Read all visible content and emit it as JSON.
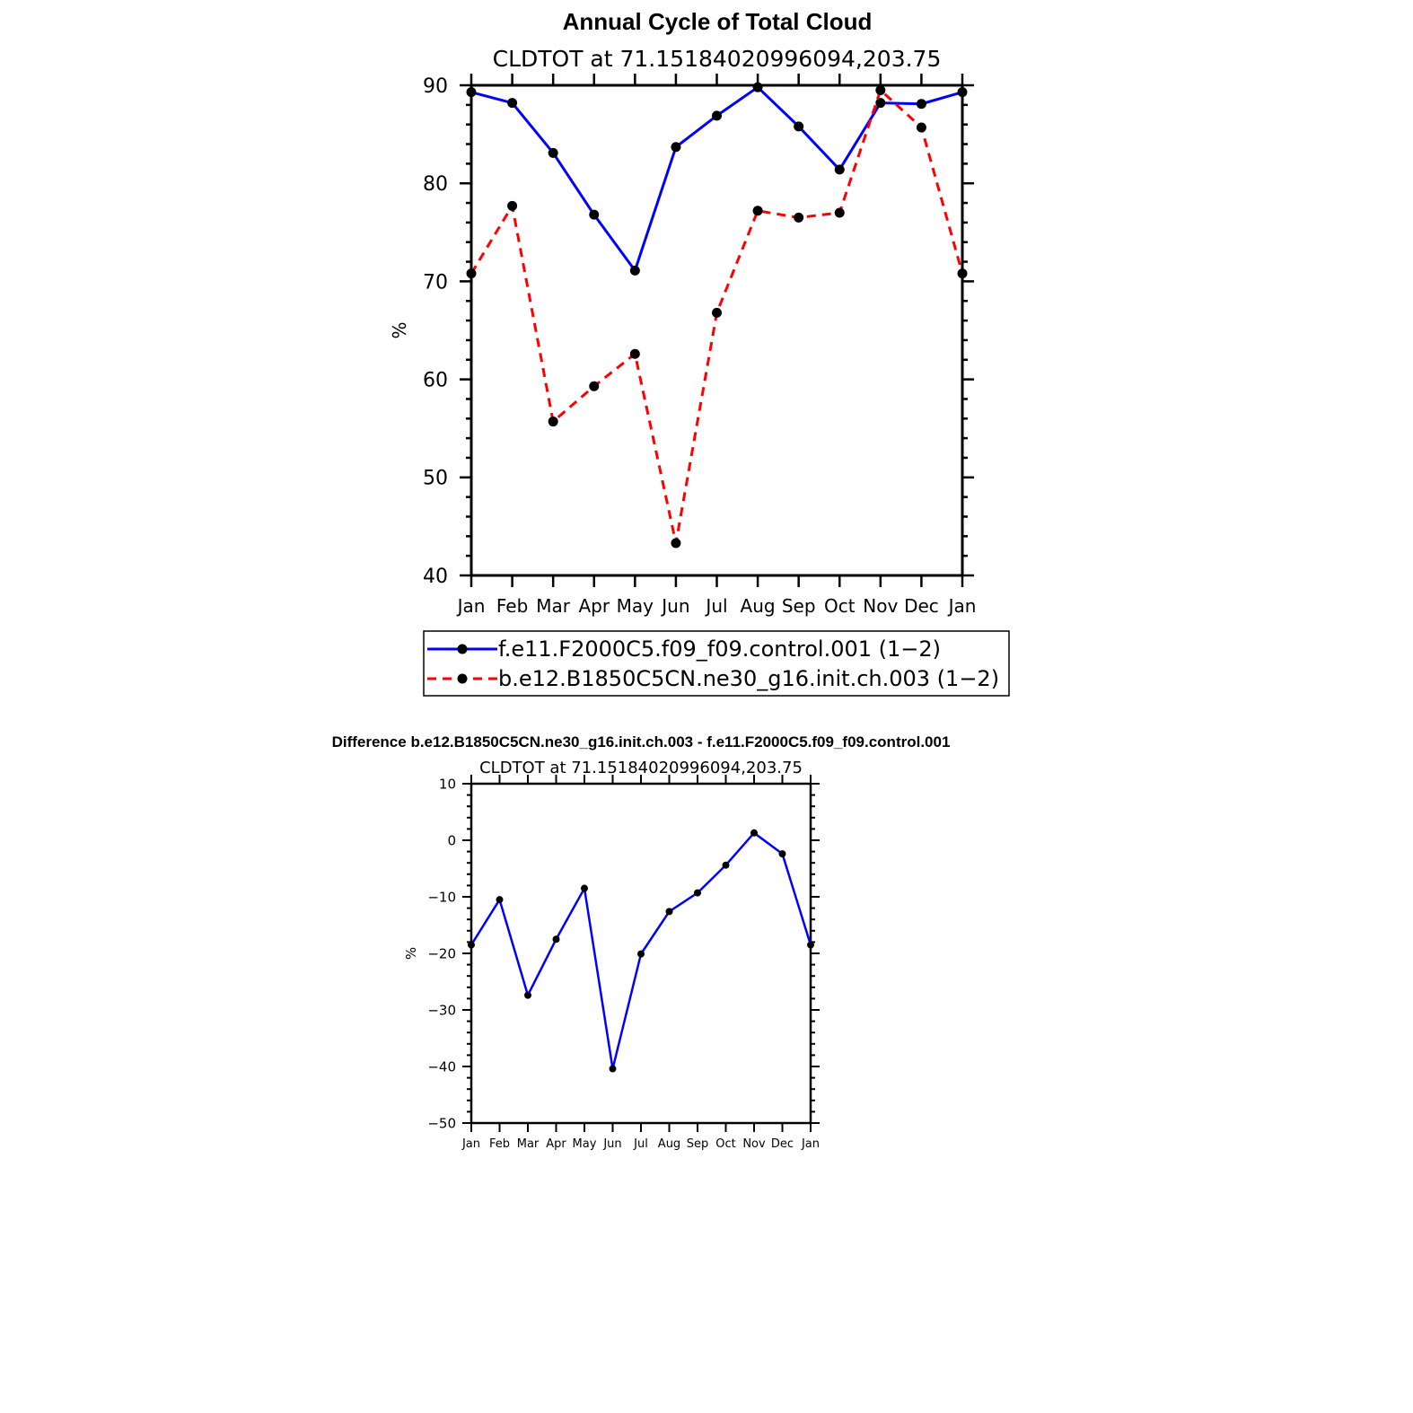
{
  "chart_data": [
    {
      "type": "line",
      "title": "Annual Cycle of Total Cloud",
      "subtitle": "CLDTOT at 71.15184020996094,203.75",
      "ylabel": "%",
      "xlabel": "",
      "categories": [
        "Jan",
        "Feb",
        "Mar",
        "Apr",
        "May",
        "Jun",
        "Jul",
        "Aug",
        "Sep",
        "Oct",
        "Nov",
        "Dec",
        "Jan"
      ],
      "ylim": [
        40,
        90
      ],
      "yticks": [
        40,
        50,
        60,
        70,
        80,
        90
      ],
      "grid": false,
      "legend_position": "bottom",
      "series": [
        {
          "name": "f.e11.F2000C5.f09_f09.control.001 (1−2)",
          "color": "#0000ff",
          "dash": "solid",
          "values": [
            89.3,
            88.2,
            83.1,
            76.8,
            71.1,
            83.7,
            86.9,
            89.8,
            85.8,
            81.4,
            88.2,
            88.1,
            89.3
          ]
        },
        {
          "name": "b.e12.B1850C5CN.ne30_g16.init.ch.003 (1−2)",
          "color": "#ff0000",
          "dash": "dashed",
          "values": [
            70.8,
            77.7,
            55.7,
            59.3,
            62.6,
            43.3,
            66.8,
            77.2,
            76.5,
            77.0,
            89.5,
            85.7,
            70.8
          ]
        }
      ]
    },
    {
      "type": "line",
      "title": "Difference b.e12.B1850C5CN.ne30_g16.init.ch.003 - f.e11.F2000C5.f09_f09.control.001",
      "subtitle": "CLDTOT at 71.15184020996094,203.75",
      "ylabel": "%",
      "xlabel": "",
      "categories": [
        "Jan",
        "Feb",
        "Mar",
        "Apr",
        "May",
        "Jun",
        "Jul",
        "Aug",
        "Sep",
        "Oct",
        "Nov",
        "Dec",
        "Jan"
      ],
      "ylim": [
        -50,
        10
      ],
      "yticks": [
        -50,
        -40,
        -30,
        -20,
        -10,
        0,
        10
      ],
      "grid": false,
      "series": [
        {
          "color": "#0000ff",
          "dash": "solid",
          "values": [
            -18.5,
            -10.5,
            -27.4,
            -17.5,
            -8.5,
            -40.4,
            -20.1,
            -12.6,
            -9.3,
            -4.4,
            1.3,
            -2.4,
            -18.5
          ]
        }
      ]
    }
  ]
}
